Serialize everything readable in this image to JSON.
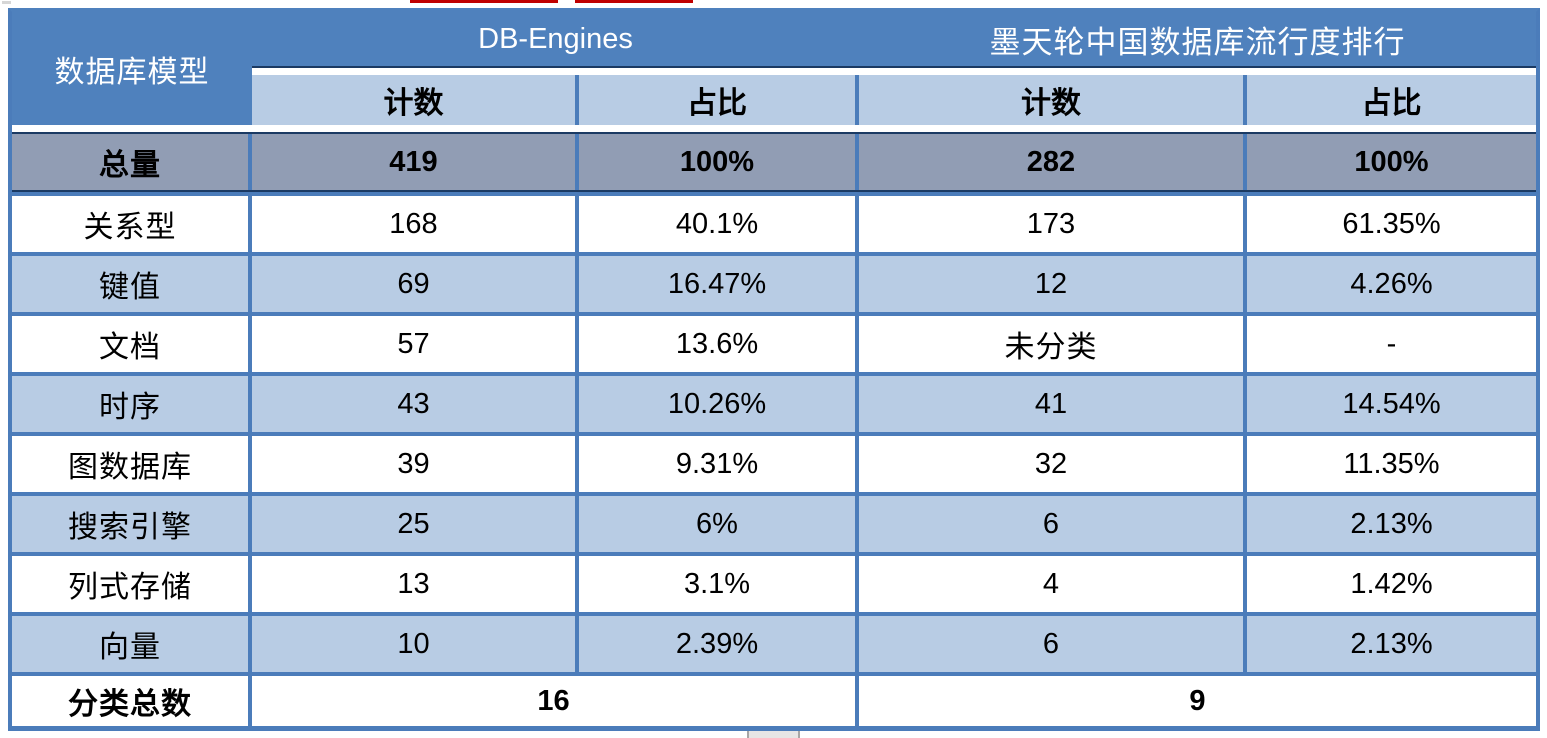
{
  "table": {
    "header": {
      "model_label": "数据库模型",
      "group_dbengines": "DB-Engines",
      "group_modb": "墨天轮中国数据库流行度排行",
      "count_label_1": "计数",
      "share_label_1": "占比",
      "count_label_2": "计数",
      "share_label_2": "占比"
    },
    "total_row": {
      "label": "总量",
      "cells": [
        "419",
        "100%",
        "282",
        "100%"
      ]
    },
    "rows": [
      {
        "label": "关系型",
        "cells": [
          "168",
          "40.1%",
          "173",
          "61.35%"
        ]
      },
      {
        "label": "键值",
        "cells": [
          "69",
          "16.47%",
          "12",
          "4.26%"
        ]
      },
      {
        "label": "文档",
        "cells": [
          "57",
          "13.6%",
          "未分类",
          "-"
        ]
      },
      {
        "label": "时序",
        "cells": [
          "43",
          "10.26%",
          "41",
          "14.54%"
        ]
      },
      {
        "label": "图数据库",
        "cells": [
          "39",
          "9.31%",
          "32",
          "11.35%"
        ]
      },
      {
        "label": "搜索引擎",
        "cells": [
          "25",
          "6%",
          "6",
          "2.13%"
        ]
      },
      {
        "label": "列式存储",
        "cells": [
          "13",
          "3.1%",
          "4",
          "1.42%"
        ]
      },
      {
        "label": "向量",
        "cells": [
          "10",
          "2.39%",
          "6",
          "2.13%"
        ]
      }
    ],
    "footer_row": {
      "label": "分类总数",
      "dbengines_total": "16",
      "modb_total": "9"
    }
  },
  "colors": {
    "header_blue": "#4f81bd",
    "band_light_blue": "#b8cce4",
    "total_row_gray_blue": "#919db4",
    "grid_border_blue": "#4b7cba",
    "accent_dark_navy": "#1b3a63",
    "artifact_red": "#c00000"
  }
}
